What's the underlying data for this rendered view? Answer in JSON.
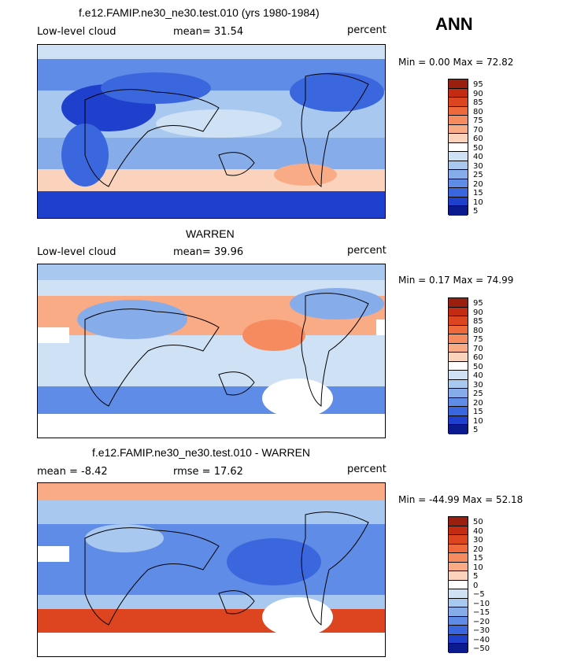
{
  "season": "ANN",
  "panels": [
    {
      "title": "f.e12.FAMIP.ne30_ne30.test.010 (yrs 1980-1984)",
      "left_label": "Low-level cloud",
      "mean_label": "mean=  31.54",
      "units": "percent",
      "minmax": "Min =   0.00 Max =  72.82",
      "colorbar_labels": [
        "95",
        "90",
        "85",
        "80",
        "75",
        "70",
        "60",
        "50",
        "40",
        "30",
        "25",
        "20",
        "15",
        "10",
        "5"
      ]
    },
    {
      "title": "WARREN",
      "left_label": "Low-level cloud",
      "mean_label": "mean=  39.96",
      "units": "percent",
      "minmax": "Min =   0.17 Max =  74.99",
      "colorbar_labels": [
        "95",
        "90",
        "85",
        "80",
        "75",
        "70",
        "60",
        "50",
        "40",
        "30",
        "25",
        "20",
        "15",
        "10",
        "5"
      ]
    },
    {
      "title": "f.e12.FAMIP.ne30_ne30.test.010 - WARREN",
      "left_label": "mean =  -8.42",
      "mean_label": "rmse =  17.62",
      "units": "percent",
      "minmax": "Min = -44.99 Max =  52.18",
      "colorbar_labels": [
        "50",
        "40",
        "30",
        "20",
        "15",
        "10",
        "5",
        "0",
        "−5",
        "−10",
        "−15",
        "−20",
        "−30",
        "−40",
        "−50"
      ]
    }
  ],
  "colors": {
    "ramp": [
      "#9b1f0e",
      "#c42b13",
      "#dd4420",
      "#ee6a3d",
      "#f58b5f",
      "#f9ab86",
      "#fbd2bb",
      "#ffffff",
      "#cfe1f5",
      "#a9c8ef",
      "#86adea",
      "#5f8ce6",
      "#3b67de",
      "#1f40cc",
      "#0b1b8f"
    ],
    "ocean_mid": "#bcd4f0"
  },
  "map_data": {
    "variable": "Low-level cloud",
    "units": "percent",
    "period": "yrs 1980-1984"
  }
}
